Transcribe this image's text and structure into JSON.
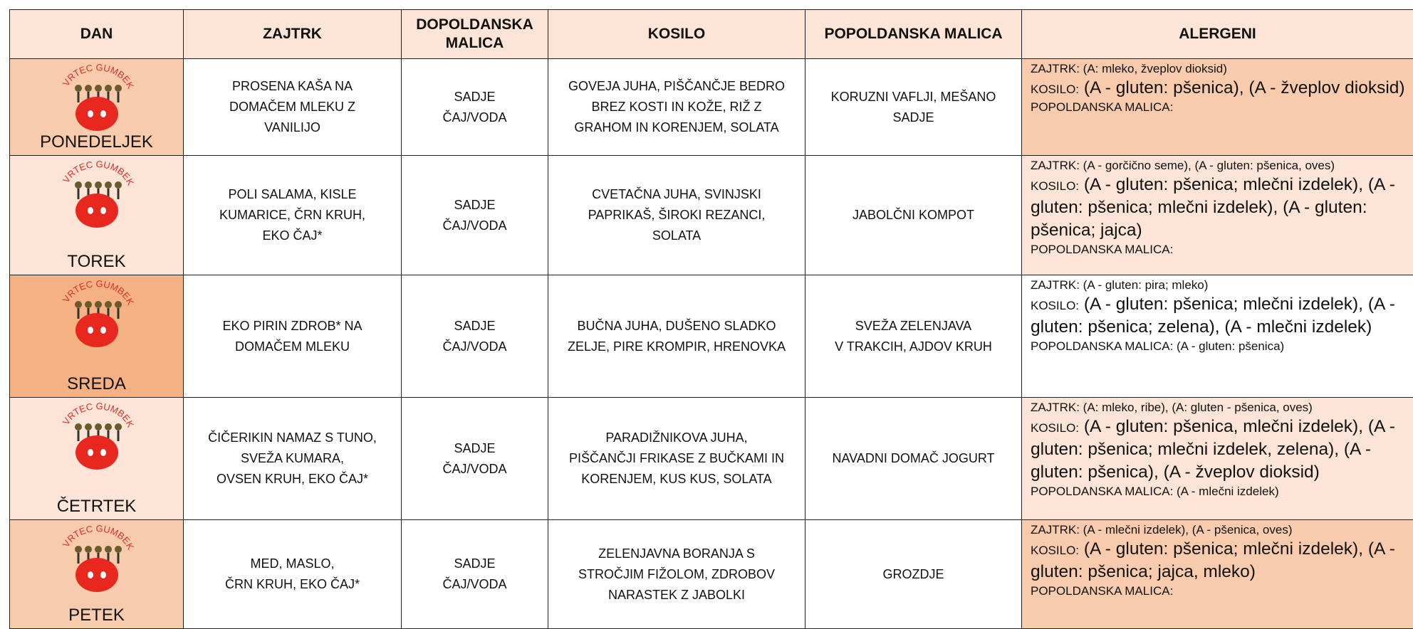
{
  "logo_text": "VRTEC GUMBEK",
  "header": [
    "DAN",
    "ZAJTRK",
    "DOPOLDANSKA MALICA",
    "KOSILO",
    "POPOLDANSKA MALICA",
    "ALERGENI"
  ],
  "rows": [
    {
      "day": "PONEDELJEK",
      "zajtrk": [
        "PROSENA KAŠA NA",
        "DOMAČEM MLEKU Z",
        "VANILIJO"
      ],
      "dopoldanska": [
        "SADJE",
        "ČAJ/VODA"
      ],
      "kosilo": [
        "GOVEJA JUHA, PIŠČANČJE BEDRO",
        "BREZ KOSTI IN KOŽE, RIŽ Z",
        "GRAHOM IN KORENJEM, SOLATA"
      ],
      "popoldanska": [
        "KORUZNI VAFLJI, MEŠANO",
        "SADJE"
      ],
      "alergeni": {
        "zajtrk": "ZAJTRK: (A: mleko, žveplov dioksid)",
        "kosilo_label": "KOSILO:",
        "kosilo": "(A - gluten: pšenica), (A - žveplov dioksid)",
        "popoldanska": "POPOLDANSKA MALICA:"
      }
    },
    {
      "day": "TOREK",
      "zajtrk": [
        "POLI SALAMA, KISLE",
        "KUMARICE, ČRN KRUH,",
        "EKO ČAJ*"
      ],
      "dopoldanska": [
        "SADJE",
        "ČAJ/VODA"
      ],
      "kosilo": [
        "CVETAČNA JUHA, SVINJSKI",
        "PAPRIKAŠ, ŠIROKI REZANCI,",
        "SOLATA"
      ],
      "popoldanska": [
        "JABOLČNI KOMPOT"
      ],
      "alergeni": {
        "zajtrk": "ZAJTRK: (A - gorčično seme), (A - gluten: pšenica, oves)",
        "kosilo_label": "KOSILO:",
        "kosilo": "(A - gluten: pšenica; mlečni izdelek), (A - gluten: pšenica; mlečni izdelek), (A - gluten: pšenica; jajca)",
        "popoldanska": "POPOLDANSKA MALICA:"
      }
    },
    {
      "day": "SREDA",
      "zajtrk": [
        "EKO PIRIN ZDROB* NA",
        "DOMAČEM MLEKU"
      ],
      "dopoldanska": [
        "SADJE",
        "ČAJ/VODA"
      ],
      "kosilo": [
        "BUČNA JUHA, DUŠENO SLADKO",
        "ZELJE, PIRE KROMPIR, HRENOVKA"
      ],
      "popoldanska": [
        "SVEŽA ZELENJAVA",
        "V TRAKCIH, AJDOV KRUH"
      ],
      "alergeni": {
        "zajtrk": "ZAJTRK: (A - gluten: pira; mleko)",
        "kosilo_label": "KOSILO:",
        "kosilo": "(A - gluten: pšenica; mlečni izdelek), (A - gluten: pšenica; zelena), (A - mlečni izdelek)",
        "popoldanska": "POPOLDANSKA MALICA: (A - gluten: pšenica)"
      }
    },
    {
      "day": "ČETRTEK",
      "zajtrk": [
        "ČIČERIKIN NAMAZ S TUNO,",
        "SVEŽA KUMARA,",
        "OVSEN KRUH, EKO ČAJ*"
      ],
      "dopoldanska": [
        "SADJE",
        "ČAJ/VODA"
      ],
      "kosilo": [
        "PARADIŽNIKOVA JUHA,",
        "PIŠČANČJI FRIKASE Z BUČKAMI IN",
        "KORENJEM, KUS KUS, SOLATA"
      ],
      "popoldanska": [
        "NAVADNI DOMAČ JOGURT"
      ],
      "alergeni": {
        "zajtrk": "ZAJTRK: (A: mleko, ribe), (A: gluten - pšenica, oves)",
        "kosilo_label": "KOSILO:",
        "kosilo": "(A - gluten: pšenica, mlečni izdelek), (A - gluten: pšenica; mlečni izdelek, zelena), (A - gluten: pšenica), (A - žveplov dioksid)",
        "popoldanska": "POPOLDANSKA MALICA: (A - mlečni izdelek)"
      }
    },
    {
      "day": "PETEK",
      "zajtrk": [
        "MED, MASLO,",
        "ČRN KRUH, EKO ČAJ*"
      ],
      "dopoldanska": [
        "SADJE",
        "ČAJ/VODA"
      ],
      "kosilo": [
        "ZELENJAVNA BORANJA S",
        "STROČJIM FIŽOLOM, ZDROBOV",
        "NARASTEK Z JABOLKI"
      ],
      "popoldanska": [
        "GROZDJE"
      ],
      "alergeni": {
        "zajtrk": "ZAJTRK: (A - mlečni izdelek), (A - pšenica, oves)",
        "kosilo_label": "KOSILO:",
        "kosilo": "(A - gluten: pšenica; mlečni izdelek), (A - gluten: pšenica; jajca, mleko)",
        "popoldanska": "POPOLDANSKA MALICA:"
      }
    }
  ]
}
